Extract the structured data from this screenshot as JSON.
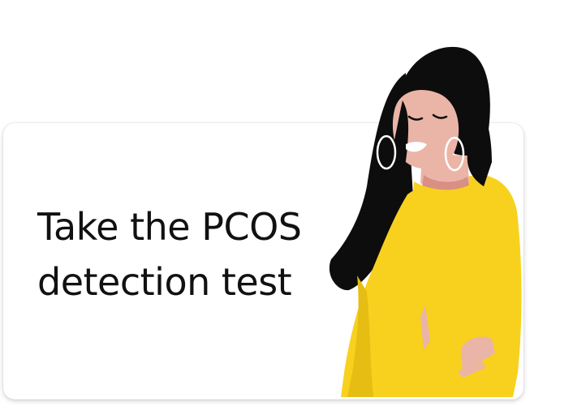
{
  "card": {
    "headline_line1": "Take the PCOS",
    "headline_line2": "detection test"
  },
  "illustration": {
    "icon": "woman-in-yellow-sweater-illustration",
    "colors": {
      "hair": "#0d0d0d",
      "skin": "#eab5a7",
      "neck_shadow": "#d98f84",
      "sweater": "#f7d11e",
      "sweater_shadow": "#e6bd12",
      "lips": "#ffffff",
      "earring": "#ffffff"
    }
  },
  "colors": {
    "background": "#ffffff",
    "card": "#ffffff",
    "text": "#111111"
  }
}
